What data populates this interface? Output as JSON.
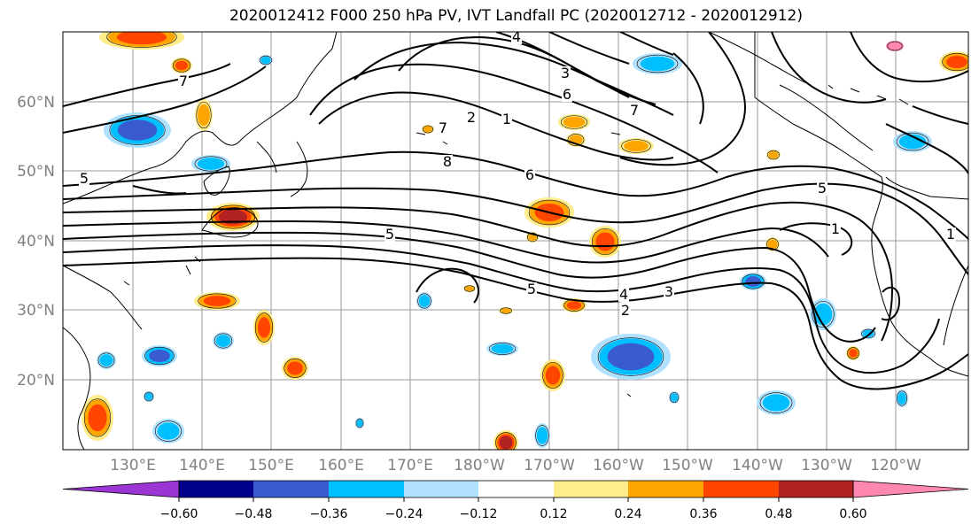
{
  "title": "2020012412 F000 250 hPa PV, IVT Landfall PC (2020012712 - 2020012912)",
  "map": {
    "lat_labels": [
      "60°N",
      "50°N",
      "40°N",
      "30°N",
      "20°N"
    ],
    "lon_labels": [
      "130°E",
      "140°E",
      "150°E",
      "160°E",
      "170°E",
      "180°W",
      "170°W",
      "160°W",
      "150°W",
      "140°W",
      "130°W",
      "120°W"
    ],
    "contour_labels": [
      "4",
      "3",
      "2",
      "1",
      "8",
      "7",
      "6",
      "5",
      "5",
      "5",
      "4",
      "3",
      "2",
      "1",
      "1",
      "5",
      "7",
      "6",
      "7"
    ]
  },
  "colorbar": {
    "colors": [
      "#9b35d4",
      "#00008b",
      "#3a5bd0",
      "#00bfff",
      "#b0e2ff",
      "#ffffff",
      "#ffec8b",
      "#ffa500",
      "#ff4500",
      "#b22222",
      "#ff88b0"
    ],
    "tick_labels": [
      "-0.60",
      "-0.48",
      "-0.36",
      "-0.24",
      "-0.12",
      "0.12",
      "0.24",
      "0.36",
      "0.48",
      "0.60"
    ]
  }
}
